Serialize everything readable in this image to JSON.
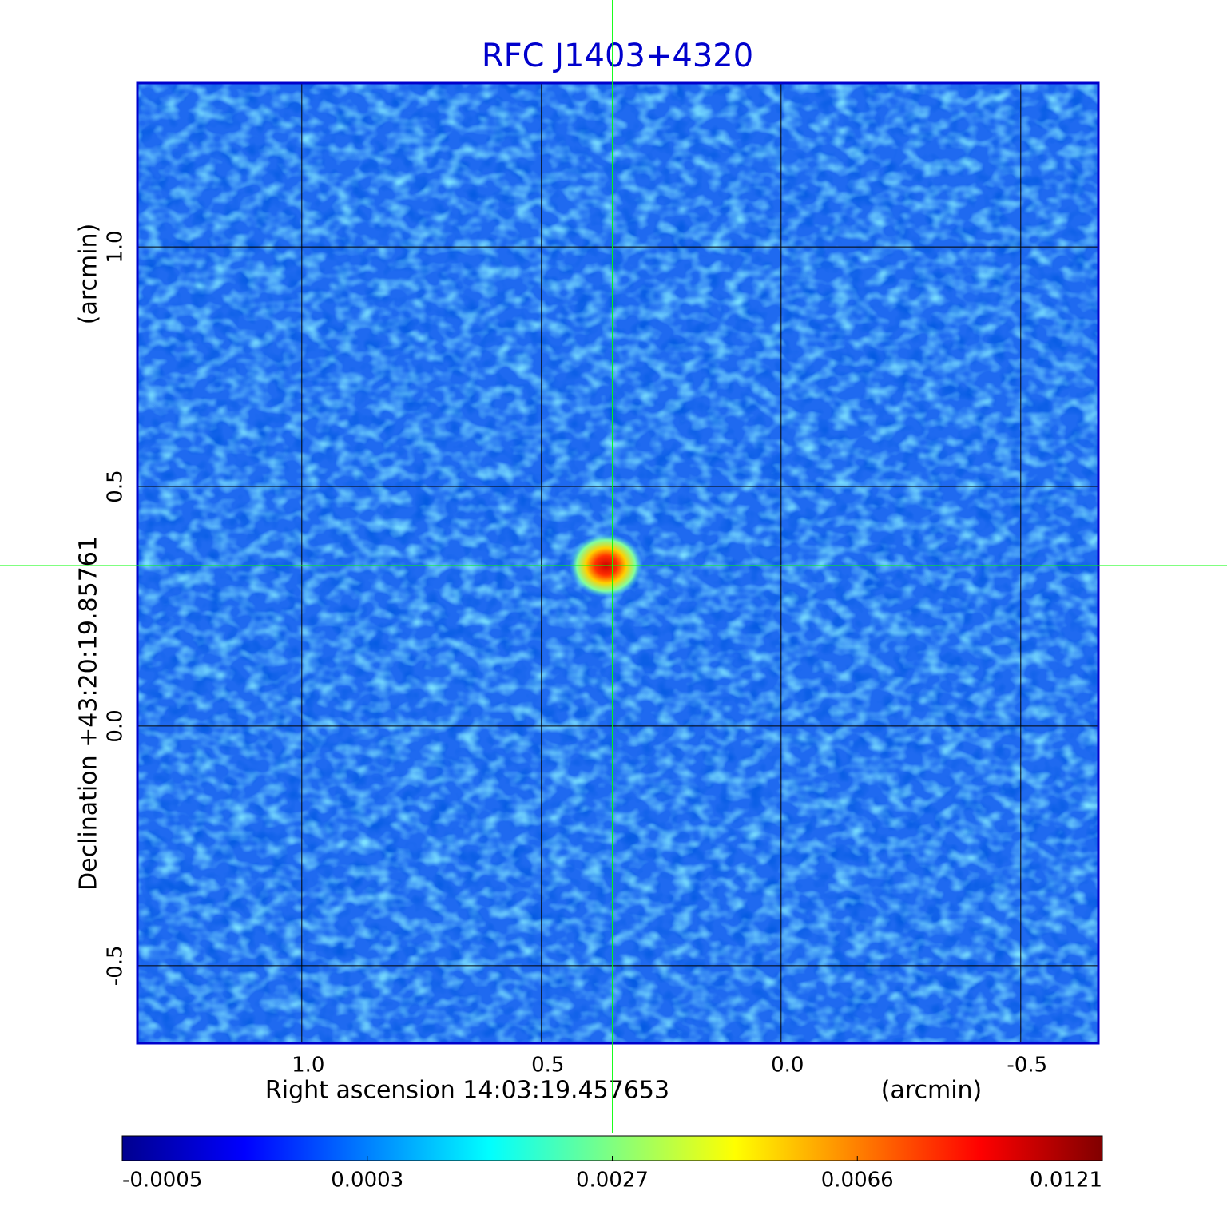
{
  "chart_data": {
    "type": "image",
    "title": "RFC J1403+4320",
    "x_label": "Right ascension  14:03:19.457653",
    "x_unit": "(arcmin)",
    "y_label": "Declination  +43:20:19.85761",
    "y_unit": "(arcmin)",
    "xlim": [
      1.343,
      -0.662
    ],
    "ylim": [
      -0.662,
      1.342
    ],
    "xticks": [
      {
        "value": 1,
        "label": "1.0"
      },
      0.5,
      {
        "value": 0,
        "label": "0.0"
      },
      -0.5
    ],
    "yticks": [
      -0.5,
      {
        "value": 0,
        "label": "0.0"
      },
      0.5,
      {
        "value": 1,
        "label": "1.0"
      }
    ],
    "grid": true,
    "marker": {
      "x": 0.352,
      "y": 0.335,
      "color": "#00ff00"
    },
    "colorbar": {
      "ticks": [
        -0.0005,
        0.0003,
        0.0027,
        0.0066,
        0.0121
      ],
      "colormap": [
        "#00008f",
        "#0000ff",
        "#0080ff",
        "#00ffff",
        "#80ff80",
        "#ffff00",
        "#ff8000",
        "#ff0000",
        "#800000"
      ]
    }
  }
}
